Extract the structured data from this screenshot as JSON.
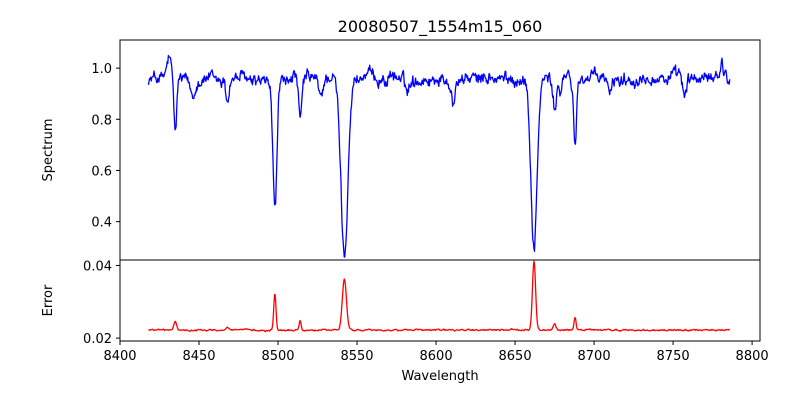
{
  "chart_data": {
    "type": "line",
    "title": "20080507_1554m15_060",
    "xlabel": "Wavelength",
    "xlim": [
      8400,
      8805
    ],
    "xticks": [
      8400,
      8450,
      8500,
      8550,
      8600,
      8650,
      8700,
      8750,
      8800
    ],
    "xtick_labels": [
      "8400",
      "8450",
      "8500",
      "8550",
      "8600",
      "8650",
      "8700",
      "8750",
      "8800"
    ],
    "grid": false,
    "panels": [
      {
        "id": "spectrum",
        "ylabel": "Spectrum",
        "ylim": [
          0.25,
          1.11
        ],
        "yticks": [
          0.4,
          0.6,
          0.8,
          1.0
        ],
        "ytick_labels": [
          "0.4",
          "0.6",
          "0.8",
          "1.0"
        ],
        "series": [
          {
            "color": "#0000ff",
            "continuum": 0.96,
            "x_range": [
              8418,
              8786
            ],
            "noise_amplitude": 0.035,
            "features": [
              {
                "center": 8431,
                "depth": -0.08,
                "width": 1.2
              },
              {
                "center": 8435,
                "depth": 0.21,
                "width": 0.9
              },
              {
                "center": 8446,
                "depth": 0.06,
                "width": 1.5
              },
              {
                "center": 8468,
                "depth": 0.08,
                "width": 1.0
              },
              {
                "center": 8498,
                "depth": 0.51,
                "width": 1.3
              },
              {
                "center": 8514,
                "depth": 0.18,
                "width": 1.0
              },
              {
                "center": 8527,
                "depth": 0.08,
                "width": 1.2
              },
              {
                "center": 8542,
                "depth": 0.7,
                "width": 2.2
              },
              {
                "center": 8582,
                "depth": 0.05,
                "width": 1.0
              },
              {
                "center": 8611,
                "depth": 0.09,
                "width": 1.0
              },
              {
                "center": 8662,
                "depth": 0.66,
                "width": 2.0
              },
              {
                "center": 8675,
                "depth": 0.12,
                "width": 1.2
              },
              {
                "center": 8679,
                "depth": 0.06,
                "width": 1.0
              },
              {
                "center": 8688,
                "depth": 0.27,
                "width": 0.9
              },
              {
                "center": 8710,
                "depth": 0.07,
                "width": 1.0
              },
              {
                "center": 8757,
                "depth": 0.06,
                "width": 1.0
              },
              {
                "center": 8781,
                "depth": -0.06,
                "width": 1.0
              }
            ]
          }
        ]
      },
      {
        "id": "error",
        "ylabel": "Error",
        "ylim": [
          0.0192,
          0.0415
        ],
        "yticks": [
          0.02,
          0.04
        ],
        "ytick_labels": [
          "0.02",
          "0.04"
        ],
        "series": [
          {
            "color": "#ff0000",
            "continuum": 0.0222,
            "x_range": [
              8418,
              8786
            ],
            "noise_amplitude": 0.00035,
            "features": [
              {
                "center": 8435,
                "height": 0.0022,
                "width": 0.9
              },
              {
                "center": 8468,
                "height": 0.0009,
                "width": 1.0
              },
              {
                "center": 8498,
                "height": 0.01,
                "width": 0.7
              },
              {
                "center": 8514,
                "height": 0.0025,
                "width": 0.6
              },
              {
                "center": 8542,
                "height": 0.014,
                "width": 1.3
              },
              {
                "center": 8662,
                "height": 0.019,
                "width": 1.0
              },
              {
                "center": 8675,
                "height": 0.0018,
                "width": 0.8
              },
              {
                "center": 8688,
                "height": 0.0035,
                "width": 0.6
              }
            ]
          }
        ]
      }
    ]
  }
}
